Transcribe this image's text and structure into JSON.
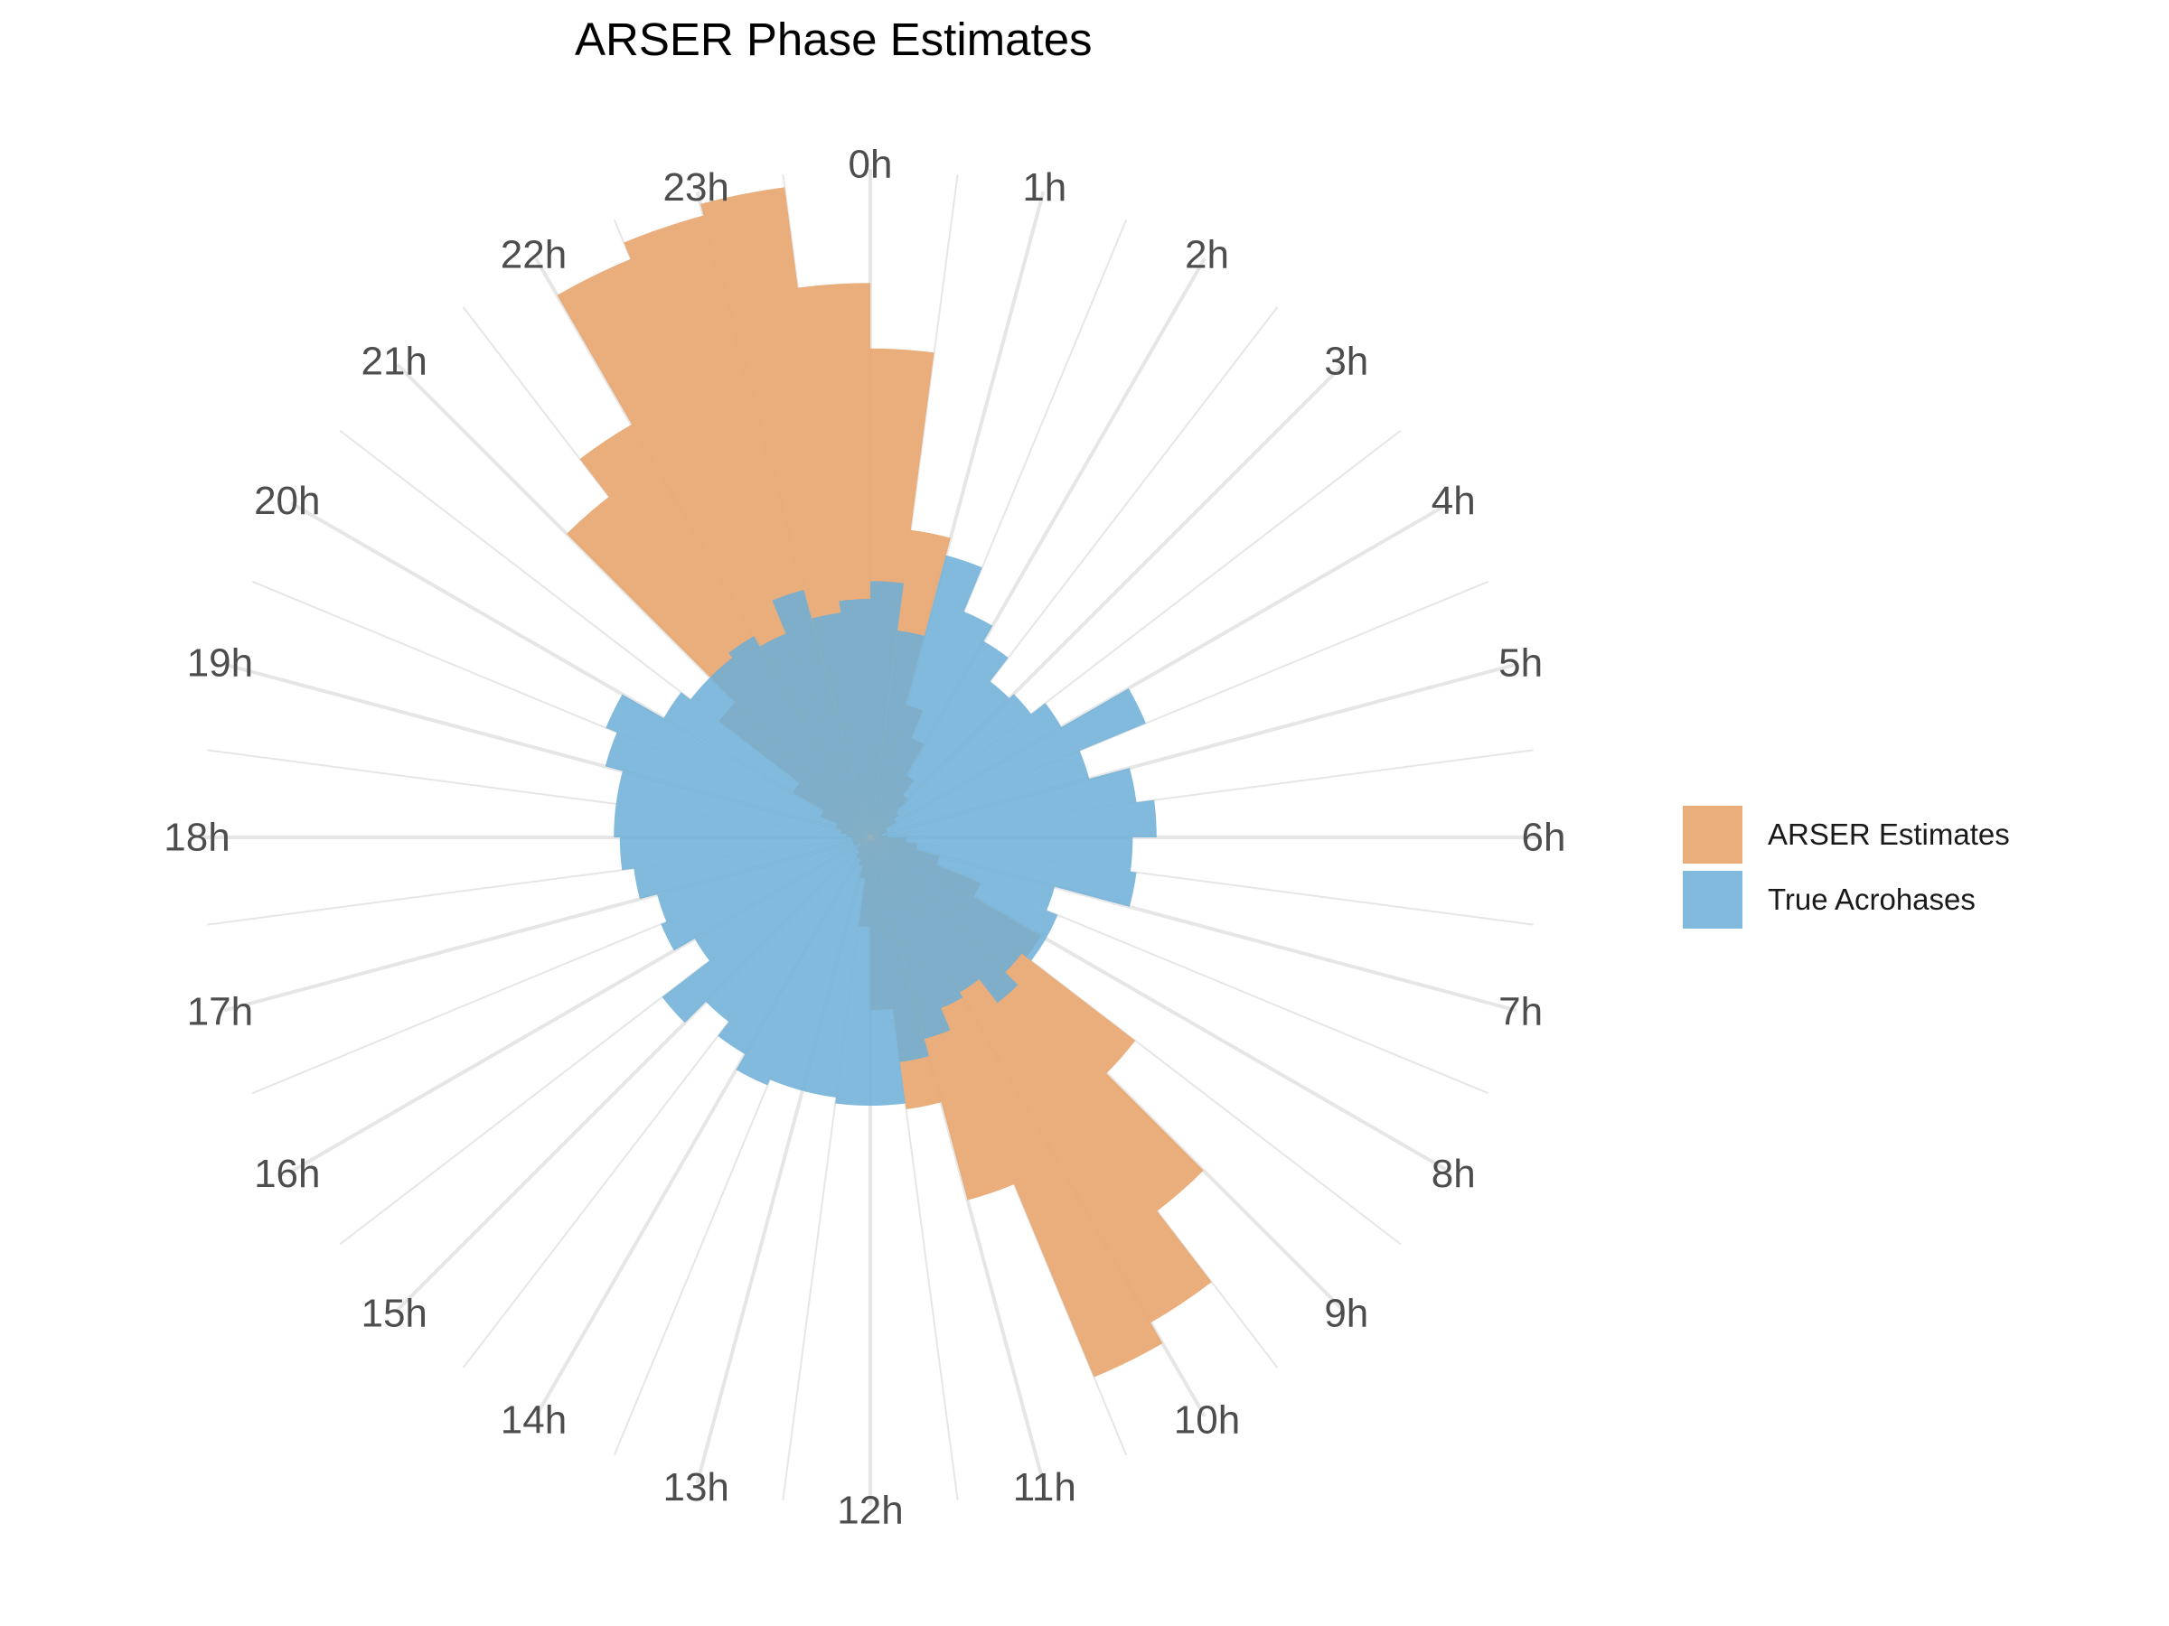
{
  "chart_data": {
    "type": "polar-bar",
    "title": "ARSER Phase Estimates",
    "angular_axis": {
      "unit": "hours",
      "range": [
        0,
        24
      ],
      "direction": "clockwise",
      "zero_at": "top",
      "tick_labels": [
        "0h",
        "1h",
        "2h",
        "3h",
        "4h",
        "5h",
        "6h",
        "7h",
        "8h",
        "9h",
        "10h",
        "11h",
        "12h",
        "13h",
        "14h",
        "15h",
        "16h",
        "17h",
        "18h",
        "19h",
        "20h",
        "21h",
        "22h",
        "23h"
      ]
    },
    "bin_width_hours": 0.5,
    "bin_starts": [
      0,
      0.5,
      1,
      1.5,
      2,
      2.5,
      3,
      3.5,
      4,
      4.5,
      5,
      5.5,
      6,
      6.5,
      7,
      7.5,
      8,
      8.5,
      9,
      9.5,
      10,
      10.5,
      11,
      11.5,
      12,
      12.5,
      13,
      13.5,
      14,
      14.5,
      15,
      15.5,
      16,
      16.5,
      17,
      17.5,
      18,
      18.5,
      19,
      19.5,
      20,
      20.5,
      21,
      21.5,
      22,
      22.5,
      23,
      23.5
    ],
    "radial_max": 12,
    "grid": true,
    "legend_position": "right",
    "series": [
      {
        "name": "ARSER Estimates",
        "color": "#E8A56F",
        "opacity": 0.9,
        "values": [
          8.2,
          5.2,
          2.3,
          1.8,
          1.2,
          0.9,
          0.6,
          0.5,
          0.3,
          0.3,
          0.2,
          0.3,
          0.6,
          0.8,
          1.2,
          2.0,
          3.3,
          5.6,
          7.9,
          9.4,
          9.8,
          6.3,
          4.6,
          2.9,
          1.5,
          0.7,
          0.5,
          0.4,
          0.4,
          0.3,
          0.3,
          0.2,
          0.3,
          0.3,
          0.3,
          0.3,
          0.4,
          0.5,
          0.6,
          0.9,
          1.5,
          3.2,
          7.2,
          8.0,
          10.5,
          10.8,
          11.0,
          9.3
        ]
      },
      {
        "name": "True Acrohases",
        "color": "#6BAED6",
        "opacity": 0.85,
        "values": [
          4.3,
          3.5,
          4.9,
          4.1,
          3.8,
          3.3,
          3.4,
          3.7,
          5.0,
          3.8,
          4.5,
          4.8,
          4.4,
          4.5,
          3.2,
          3.4,
          3.4,
          3.2,
          3.5,
          3.0,
          3.1,
          3.5,
          3.8,
          4.5,
          4.5,
          4.4,
          4.4,
          4.5,
          4.2,
          3.9,
          4.4,
          3.4,
          3.8,
          3.7,
          4.0,
          4.2,
          4.3,
          4.3,
          4.6,
          4.8,
          4.0,
          3.8,
          3.8,
          3.9,
          3.7,
          4.3,
          3.8,
          4.0
        ]
      }
    ]
  }
}
